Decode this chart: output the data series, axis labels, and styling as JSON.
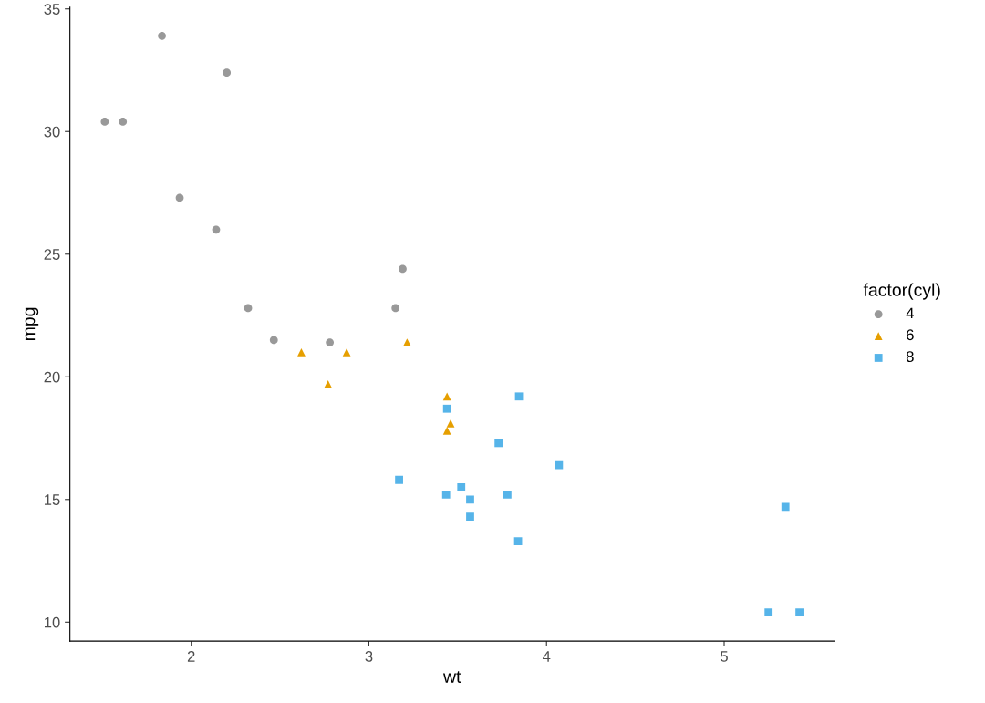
{
  "chart_data": {
    "type": "scatter",
    "xlabel": "wt",
    "ylabel": "mpg",
    "legend_title": "factor(cyl)",
    "legend": "right",
    "grid": false,
    "xlim": [
      1.317,
      5.62
    ],
    "ylim": [
      9.225,
      35.075
    ],
    "xticks": [
      2,
      3,
      4,
      5
    ],
    "yticks": [
      10,
      15,
      20,
      25,
      30,
      35
    ],
    "series": [
      {
        "name": "4",
        "color": "#999999",
        "marker": "circle",
        "x": [
          2.32,
          3.19,
          3.15,
          2.2,
          1.615,
          1.835,
          2.465,
          1.935,
          2.14,
          1.513,
          2.78
        ],
        "values": [
          22.8,
          24.4,
          22.8,
          32.4,
          30.4,
          33.9,
          21.5,
          27.3,
          26.0,
          30.4,
          21.4
        ]
      },
      {
        "name": "6",
        "color": "#E69F00",
        "marker": "triangle",
        "x": [
          2.62,
          2.875,
          3.215,
          3.46,
          3.44,
          3.44,
          2.77
        ],
        "values": [
          21.0,
          21.0,
          21.4,
          18.1,
          19.2,
          17.8,
          19.7
        ]
      },
      {
        "name": "8",
        "color": "#56B4E9",
        "marker": "square",
        "x": [
          3.44,
          3.57,
          4.07,
          3.73,
          3.78,
          5.25,
          5.424,
          5.345,
          3.52,
          3.435,
          3.84,
          3.845,
          3.17,
          3.57
        ],
        "values": [
          18.7,
          14.3,
          16.4,
          17.3,
          15.2,
          10.4,
          10.4,
          14.7,
          15.5,
          15.2,
          13.3,
          19.2,
          15.8,
          15.0
        ]
      }
    ]
  }
}
